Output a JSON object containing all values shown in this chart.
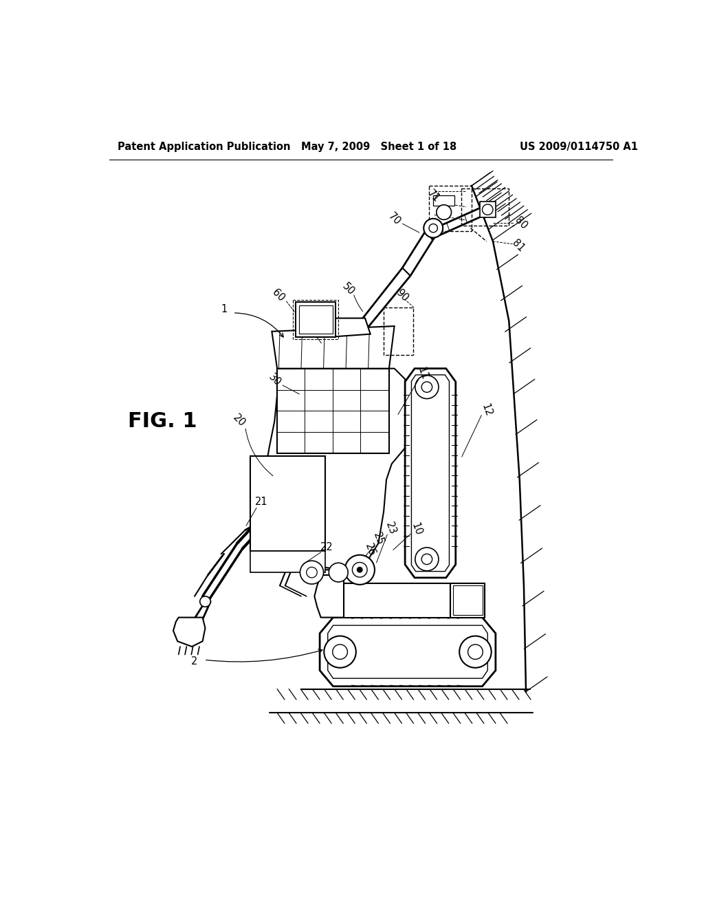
{
  "background_color": "#ffffff",
  "header_left": "Patent Application Publication",
  "header_center": "May 7, 2009   Sheet 1 of 18",
  "header_right": "US 2009/0114750 A1",
  "figure_label": "FIG. 1",
  "text_color": "#000000",
  "header_fontsize": 10.5,
  "figure_label_fontsize": 22
}
